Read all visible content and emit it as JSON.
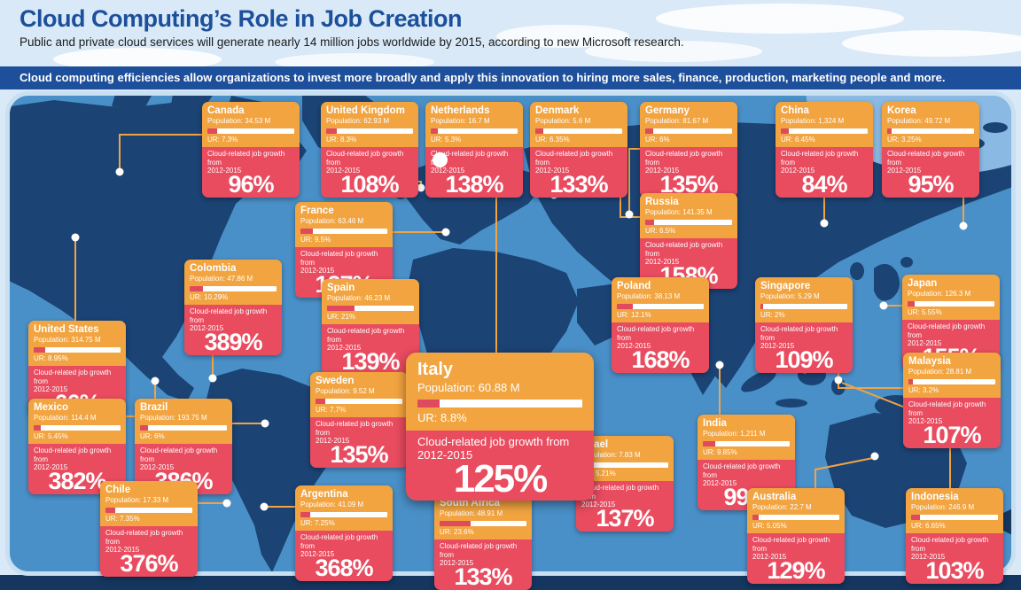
{
  "header": {
    "title": "Cloud Computing’s Role in Job Creation",
    "subtitle": "Public and private cloud services will generate nearly 14 million jobs worldwide by 2015, according to new Microsoft research.",
    "banner": "Cloud computing efficiencies allow organizations to invest more broadly and apply this innovation to hiring more sales, finance, production, marketing people and more."
  },
  "card_labels": {
    "population_prefix": "Population:",
    "ur_prefix": "UR:",
    "growth_line1": "Cloud-related job growth from",
    "growth_line2": "2012-2015"
  },
  "colors": {
    "card_orange": "#F2A440",
    "card_red": "#E94B5F",
    "ocean_blue": "#4A90C8",
    "land_navy": "#1B4374",
    "arctic_light_blue": "#8ABAE4",
    "banner_blue": "#1E4F9B",
    "title_blue": "#1C4F9C",
    "footer_navy": "#14365F",
    "connector_orange": "#F2A444"
  },
  "countries": [
    {
      "slug": "canada",
      "name": "Canada",
      "population": "34.53 M",
      "ur": "7.3%",
      "growth": "96%"
    },
    {
      "slug": "united-kingdom",
      "name": "United Kingdom",
      "population": "62.93 M",
      "ur": "8.3%",
      "growth": "108%"
    },
    {
      "slug": "netherlands",
      "name": "Netherlands",
      "population": "16.7 M",
      "ur": "5.3%",
      "growth": "138%"
    },
    {
      "slug": "denmark",
      "name": "Denmark",
      "population": "5.6 M",
      "ur": "6.35%",
      "growth": "133%"
    },
    {
      "slug": "germany",
      "name": "Germany",
      "population": "81.67 M",
      "ur": "6%",
      "growth": "135%"
    },
    {
      "slug": "china",
      "name": "China",
      "population": "1,324 M",
      "ur": "6.45%",
      "growth": "84%"
    },
    {
      "slug": "korea",
      "name": "Korea",
      "population": "49.72 M",
      "ur": "3.25%",
      "growth": "95%"
    },
    {
      "slug": "france",
      "name": "France",
      "population": "63.46 M",
      "ur": "9.5%",
      "growth": "137%"
    },
    {
      "slug": "russia",
      "name": "Russia",
      "population": "141.35 M",
      "ur": "6.5%",
      "growth": "158%"
    },
    {
      "slug": "colombia",
      "name": "Colombia",
      "population": "47.86 M",
      "ur": "10.29%",
      "growth": "389%"
    },
    {
      "slug": "spain",
      "name": "Spain",
      "population": "46.23 M",
      "ur": "21%",
      "growth": "139%"
    },
    {
      "slug": "poland",
      "name": "Poland",
      "population": "38.13 M",
      "ur": "12.1%",
      "growth": "168%"
    },
    {
      "slug": "singapore",
      "name": "Singapore",
      "population": "5.29 M",
      "ur": "2%",
      "growth": "109%"
    },
    {
      "slug": "japan",
      "name": "Japan",
      "population": "126.3 M",
      "ur": "5.55%",
      "growth": "155%"
    },
    {
      "slug": "united-states",
      "name": "United States",
      "population": "314.75 M",
      "ur": "8.95%",
      "growth": "66%"
    },
    {
      "slug": "sweden",
      "name": "Sweden",
      "population": "9.52 M",
      "ur": "7.7%",
      "growth": "135%"
    },
    {
      "slug": "mexico",
      "name": "Mexico",
      "population": "114.4 M",
      "ur": "5.45%",
      "growth": "382%"
    },
    {
      "slug": "brazil",
      "name": "Brazil",
      "population": "193.75 M",
      "ur": "6%",
      "growth": "386%"
    },
    {
      "slug": "israel",
      "name": "Israel",
      "population": "7.83 M",
      "ur": "5.21%",
      "growth": "137%"
    },
    {
      "slug": "india",
      "name": "India",
      "population": "1,211 M",
      "ur": "9.85%",
      "growth": "99%"
    },
    {
      "slug": "chile",
      "name": "Chile",
      "population": "17.33 M",
      "ur": "7.35%",
      "growth": "376%"
    },
    {
      "slug": "argentina",
      "name": "Argentina",
      "population": "41.09 M",
      "ur": "7.25%",
      "growth": "368%"
    },
    {
      "slug": "south-africa",
      "name": "South Africa",
      "population": "48.91 M",
      "ur": "23.6%",
      "growth": "133%"
    },
    {
      "slug": "italy",
      "name": "Italy",
      "population": "60.88 M",
      "ur": "8.8%",
      "growth": "125%",
      "featured": true
    },
    {
      "slug": "malaysia",
      "name": "Malaysia",
      "population": "28.81 M",
      "ur": "3.2%",
      "growth": "107%"
    },
    {
      "slug": "australia",
      "name": "Australia",
      "population": "22.7 M",
      "ur": "5.05%",
      "growth": "129%"
    },
    {
      "slug": "indonesia",
      "name": "Indonesia",
      "population": "246.9 M",
      "ur": "6.65%",
      "growth": "103%"
    }
  ]
}
